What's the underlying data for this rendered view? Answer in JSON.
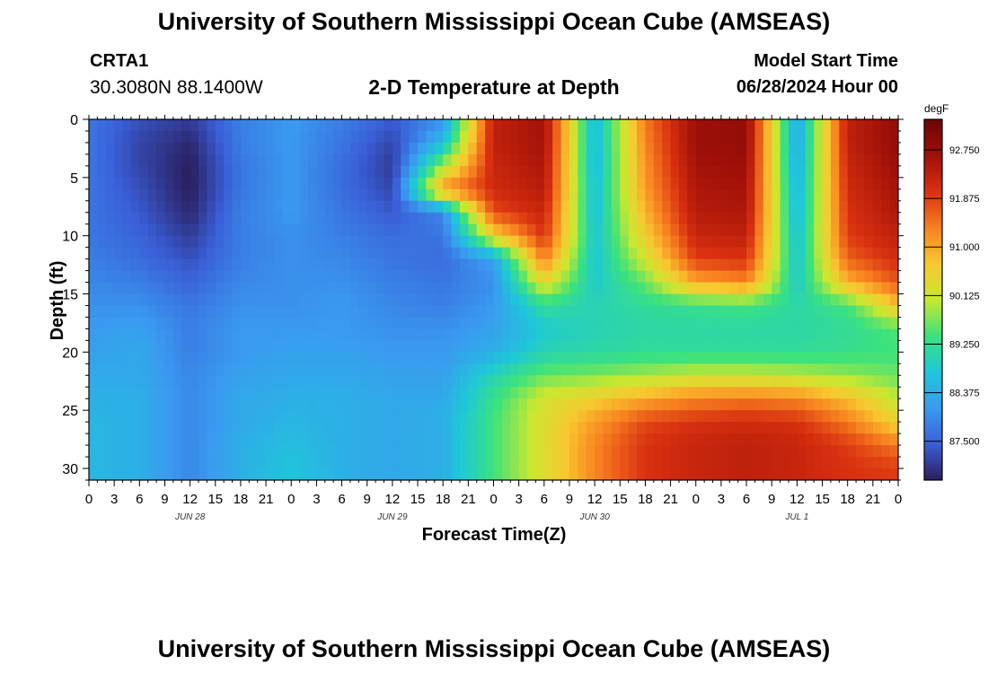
{
  "header": {
    "title": "University of Southern Mississippi Ocean Cube (AMSEAS)",
    "station": "CRTA1",
    "coords": "30.3080N  88.1400W",
    "subtitle": "2-D Temperature at Depth",
    "model_start_label": "Model Start Time",
    "model_start_value": "06/28/2024 Hour 00"
  },
  "footer": {
    "title": "University of Southern Mississippi Ocean Cube (AMSEAS)"
  },
  "chart_data": {
    "type": "heatmap",
    "title": "2-D Temperature at Depth",
    "xlabel": "Forecast Time(Z)",
    "ylabel": "Depth (ft)",
    "x_range_hours": [
      0,
      96
    ],
    "y_range_ft": [
      0,
      31
    ],
    "x_tick_labels": [
      "0",
      "3",
      "6",
      "9",
      "12",
      "15",
      "18",
      "21",
      "0",
      "3",
      "6",
      "9",
      "12",
      "15",
      "18",
      "21",
      "0",
      "3",
      "6",
      "9",
      "12",
      "15",
      "18",
      "21",
      "0",
      "3",
      "6",
      "9",
      "12",
      "15",
      "18",
      "21",
      "0"
    ],
    "day_labels": [
      "JUN 28",
      "JUN 29",
      "JUN 30",
      "JUL 1"
    ],
    "y_ticks": [
      0,
      5,
      10,
      15,
      20,
      25,
      30
    ],
    "colorbar": {
      "unit": "degF",
      "min": 86.8,
      "max": 93.3,
      "tick_labels": [
        "87.500",
        "88.375",
        "89.250",
        "90.125",
        "91.000",
        "91.875",
        "92.750"
      ],
      "tick_values": [
        87.5,
        88.375,
        89.25,
        90.125,
        91.0,
        91.875,
        92.75
      ],
      "colors": [
        "#2a1e5c",
        "#3a5fd8",
        "#3a9af0",
        "#1ec8d8",
        "#3ce27c",
        "#c8e830",
        "#f8c830",
        "#f88020",
        "#d83010",
        "#a01008",
        "#6a0606"
      ]
    },
    "depths_ft": [
      0,
      2,
      4,
      6,
      8,
      10,
      12,
      14,
      16,
      18,
      20,
      22,
      24,
      26,
      28,
      30
    ],
    "hours": [
      0,
      6,
      12,
      18,
      24,
      30,
      36,
      42,
      48,
      54,
      60,
      66,
      72,
      78,
      84,
      90,
      96
    ],
    "temperatures_degF": [
      [
        87.7,
        87.3,
        87.1,
        87.8,
        88.1,
        87.8,
        87.4,
        88.0,
        92.3,
        92.6,
        88.5,
        91.4,
        92.7,
        92.8,
        88.2,
        92.3,
        92.8
      ],
      [
        87.7,
        87.2,
        86.9,
        87.8,
        88.1,
        87.7,
        87.2,
        88.6,
        92.3,
        92.6,
        88.5,
        91.3,
        92.7,
        92.8,
        88.2,
        92.3,
        92.8
      ],
      [
        87.7,
        87.2,
        86.8,
        87.7,
        88.1,
        87.6,
        87.1,
        89.9,
        92.2,
        92.5,
        88.5,
        91.2,
        92.6,
        92.7,
        88.3,
        92.2,
        92.7
      ],
      [
        87.7,
        87.3,
        86.8,
        87.7,
        88.1,
        87.6,
        87.2,
        91.2,
        92.1,
        92.4,
        88.6,
        91.1,
        92.5,
        92.6,
        88.4,
        92.1,
        92.6
      ],
      [
        87.7,
        87.4,
        86.9,
        87.8,
        88.1,
        87.7,
        87.4,
        87.9,
        91.8,
        92.2,
        88.6,
        90.9,
        92.4,
        92.5,
        88.5,
        92.0,
        92.5
      ],
      [
        87.7,
        87.5,
        87.1,
        87.8,
        88.0,
        87.8,
        87.6,
        87.7,
        90.5,
        92.0,
        88.7,
        90.6,
        92.2,
        92.3,
        88.6,
        91.9,
        92.3
      ],
      [
        87.8,
        87.6,
        87.3,
        87.8,
        88.0,
        87.9,
        87.7,
        87.6,
        88.2,
        91.4,
        88.7,
        90.2,
        91.9,
        92.0,
        88.7,
        91.6,
        92.1
      ],
      [
        87.9,
        87.8,
        87.5,
        87.9,
        88.0,
        88.0,
        87.8,
        87.7,
        88.0,
        90.4,
        88.8,
        89.6,
        91.0,
        91.3,
        88.8,
        90.9,
        91.7
      ],
      [
        88.0,
        88.0,
        87.7,
        88.0,
        88.0,
        88.1,
        87.9,
        87.8,
        88.1,
        89.2,
        89.0,
        89.2,
        89.3,
        89.4,
        89.1,
        89.4,
        90.8
      ],
      [
        88.1,
        88.2,
        87.8,
        88.1,
        88.1,
        88.1,
        88.0,
        88.0,
        88.2,
        88.8,
        89.0,
        89.1,
        89.1,
        89.1,
        89.1,
        89.2,
        89.5
      ],
      [
        88.2,
        88.3,
        87.8,
        88.1,
        88.2,
        88.2,
        88.1,
        88.1,
        88.4,
        89.0,
        89.1,
        89.2,
        89.2,
        89.2,
        89.2,
        89.3,
        89.4
      ],
      [
        88.3,
        88.3,
        87.9,
        88.2,
        88.3,
        88.3,
        88.2,
        88.2,
        89.0,
        89.6,
        89.7,
        89.9,
        90.1,
        90.1,
        90.0,
        89.8,
        89.6
      ],
      [
        88.4,
        88.4,
        87.9,
        88.3,
        88.4,
        88.4,
        88.3,
        88.3,
        89.3,
        90.2,
        90.6,
        91.0,
        91.3,
        91.4,
        91.3,
        90.8,
        90.0
      ],
      [
        88.5,
        88.4,
        87.9,
        88.3,
        88.5,
        88.4,
        88.3,
        88.4,
        89.4,
        90.3,
        91.1,
        91.8,
        92.0,
        92.1,
        92.0,
        91.4,
        90.5
      ],
      [
        88.5,
        88.4,
        87.9,
        88.4,
        88.6,
        88.4,
        88.3,
        88.4,
        89.4,
        90.3,
        91.3,
        92.0,
        92.2,
        92.3,
        92.2,
        91.9,
        91.4
      ],
      [
        88.5,
        88.4,
        87.9,
        88.4,
        88.7,
        88.4,
        88.3,
        88.4,
        89.4,
        90.3,
        91.3,
        92.0,
        92.2,
        92.3,
        92.2,
        92.0,
        91.9
      ]
    ]
  }
}
